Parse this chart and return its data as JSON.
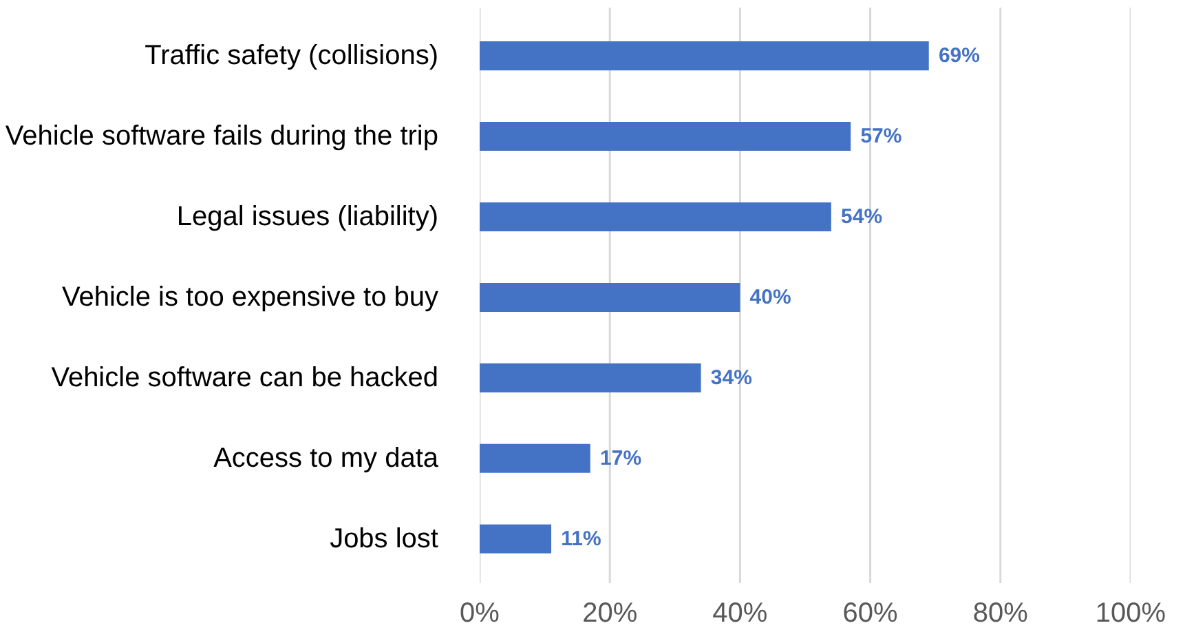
{
  "chart_data": {
    "type": "bar",
    "orientation": "horizontal",
    "categories": [
      "Traffic safety (collisions)",
      "Vehicle software fails during the trip",
      "Legal issues (liability)",
      "Vehicle is too expensive to buy",
      "Vehicle software can be hacked",
      "Access to my data",
      "Jobs lost"
    ],
    "values": [
      69,
      57,
      54,
      40,
      34,
      17,
      11
    ],
    "value_labels": [
      "69%",
      "57%",
      "54%",
      "40%",
      "34%",
      "17%",
      "11%"
    ],
    "color": "#4472c4",
    "xlim": [
      0,
      100
    ],
    "xticks": [
      {
        "value": 0,
        "label": "0%"
      },
      {
        "value": 20,
        "label": "20%"
      },
      {
        "value": 40,
        "label": "40%"
      },
      {
        "value": 60,
        "label": "60%"
      },
      {
        "value": 80,
        "label": "80%"
      },
      {
        "value": 100,
        "label": "100%"
      }
    ],
    "grid": "x"
  }
}
